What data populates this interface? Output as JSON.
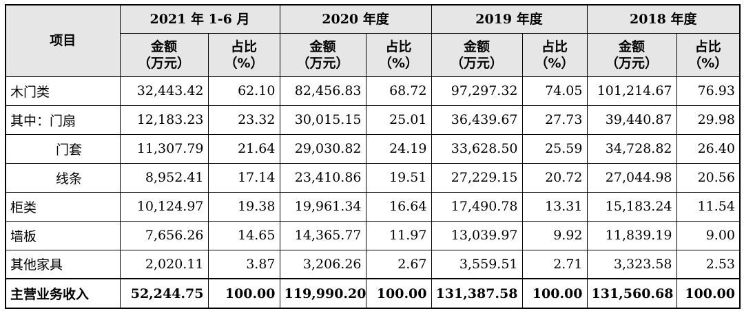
{
  "header": {
    "item_label": "项目",
    "periods": [
      "2021 年 1-6 月",
      "2020 年度",
      "2019 年度",
      "2018 年度"
    ],
    "amount_label": "金额\n（万元）",
    "ratio_label": "占比\n（%）"
  },
  "rows": [
    {
      "name": "木门类",
      "indent": false,
      "values": [
        "32,443.42",
        "62.10",
        "82,456.83",
        "68.72",
        "97,297.32",
        "74.05",
        "101,214.67",
        "76.93"
      ]
    },
    {
      "name": "其中：门扇",
      "indent": false,
      "values": [
        "12,183.23",
        "23.32",
        "30,015.15",
        "25.01",
        "36,439.67",
        "27.73",
        "39,440.87",
        "29.98"
      ]
    },
    {
      "name": "门套",
      "indent": true,
      "values": [
        "11,307.79",
        "21.64",
        "29,030.82",
        "24.19",
        "33,628.50",
        "25.59",
        "34,728.82",
        "26.40"
      ]
    },
    {
      "name": "线条",
      "indent": true,
      "values": [
        "8,952.41",
        "17.14",
        "23,410.86",
        "19.51",
        "27,229.15",
        "20.72",
        "27,044.98",
        "20.56"
      ]
    },
    {
      "name": "柜类",
      "indent": false,
      "values": [
        "10,124.97",
        "19.38",
        "19,961.34",
        "16.64",
        "17,490.78",
        "13.31",
        "15,183.24",
        "11.54"
      ]
    },
    {
      "name": "墙板",
      "indent": false,
      "values": [
        "7,656.26",
        "14.65",
        "14,365.77",
        "11.97",
        "13,039.97",
        "9.92",
        "11,839.19",
        "9.00"
      ]
    },
    {
      "name": "其他家具",
      "indent": false,
      "values": [
        "2,020.11",
        "3.87",
        "3,206.26",
        "2.67",
        "3,559.51",
        "2.71",
        "3,323.58",
        "2.53"
      ]
    }
  ],
  "total": {
    "name": "主营业务收入",
    "values": [
      "52,244.75",
      "100.00",
      "119,990.20",
      "100.00",
      "131,387.58",
      "100.00",
      "131,560.68",
      "100.00"
    ]
  }
}
